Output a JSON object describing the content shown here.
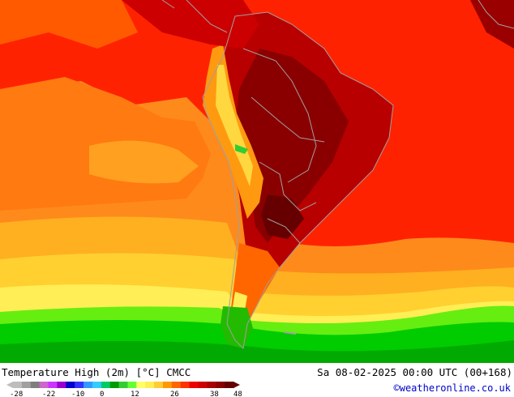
{
  "footer": {
    "title": "Temperature High (2m) [°C] CMCC",
    "datetime": "Sa 08-02-2025 00:00 UTC (00+168)",
    "credit": "©weatheronline.co.uk"
  },
  "legend": {
    "ticks": [
      "-28",
      "-22",
      "-10",
      "0",
      "12",
      "26",
      "38",
      "48"
    ],
    "colors": [
      "#bdbdbd",
      "#a0a0a0",
      "#7e7e7e",
      "#cc66cc",
      "#cc33ff",
      "#9900cc",
      "#0000cc",
      "#3333ff",
      "#3399ff",
      "#33ccff",
      "#00cc66",
      "#009900",
      "#33cc33",
      "#66ff33",
      "#ffff66",
      "#ffee55",
      "#ffcc33",
      "#ff9900",
      "#ff6600",
      "#ff3300",
      "#ee0000",
      "#cc0000",
      "#aa0000",
      "#880000",
      "#660000"
    ]
  },
  "map_colors": {
    "ocean_warm": "#ff8c1a",
    "ocean_hot": "#ff2a00",
    "land_hot": "#a00000",
    "land_very_hot": "#7a0000",
    "mild": "#ffc020",
    "cool": "#33cc00",
    "cold": "#00ee00",
    "border": "#a0a0a0"
  }
}
